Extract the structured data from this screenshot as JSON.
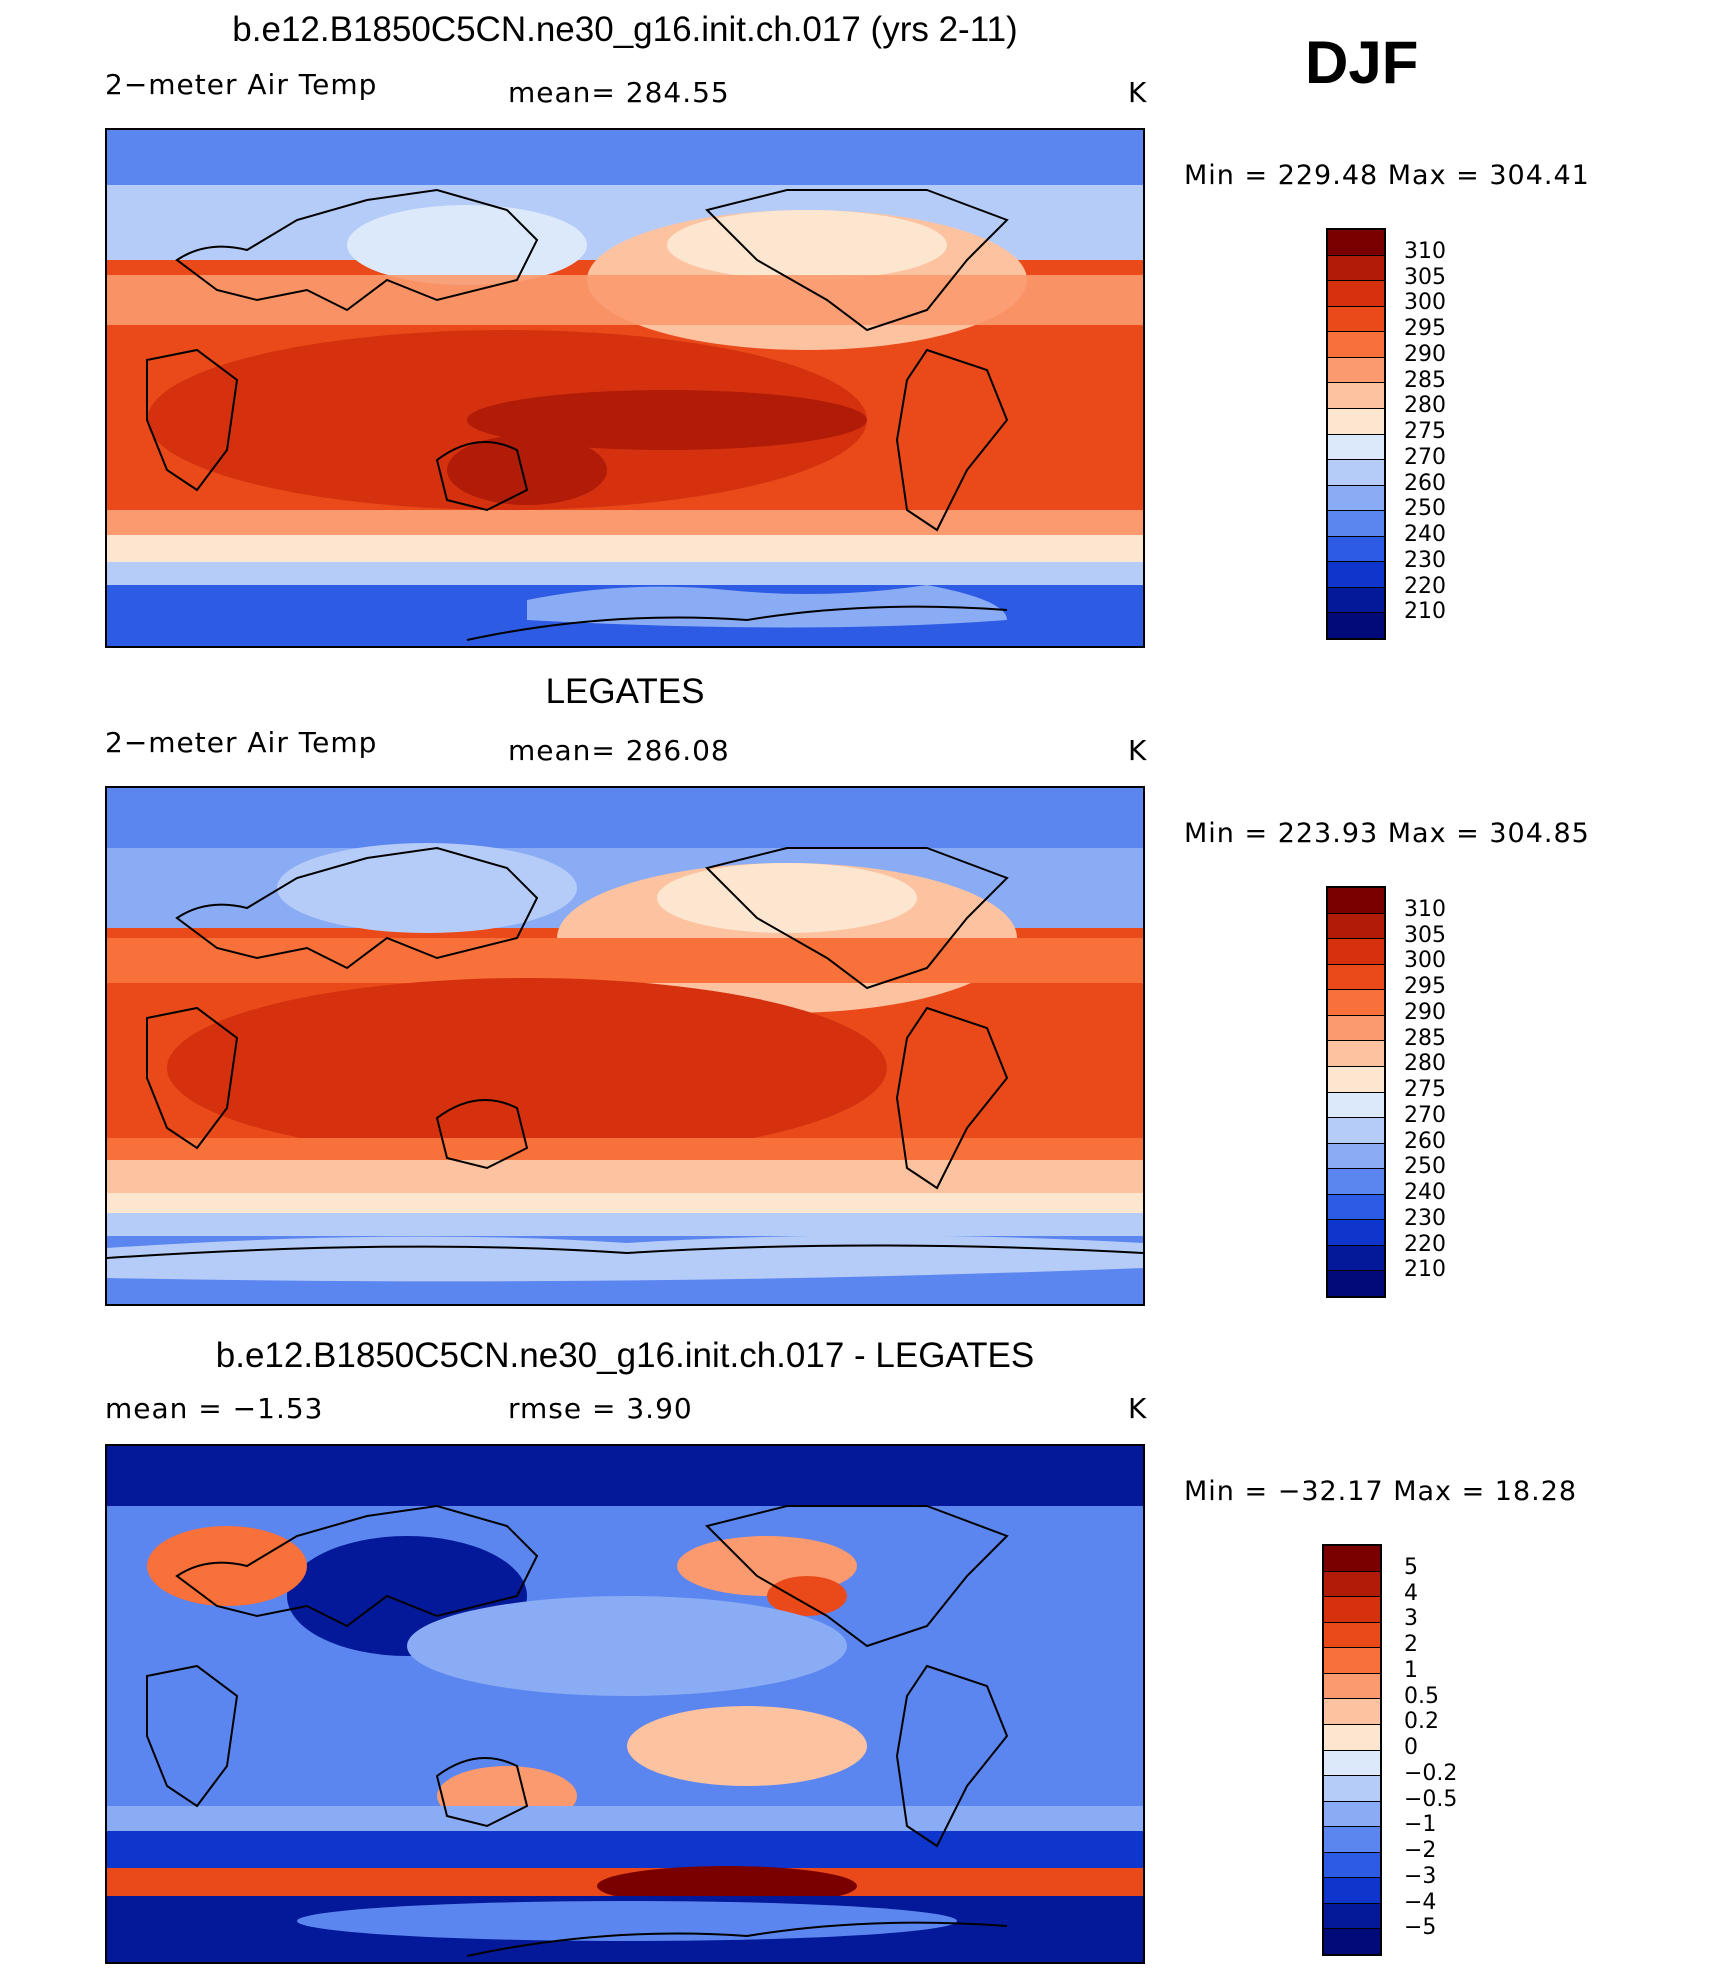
{
  "season": "DJF",
  "panels": [
    {
      "title": "b.e12.B1850C5CN.ne30_g16.init.ch.017 (yrs 2-11)",
      "left_label": "2−meter Air Temp",
      "center_label": "mean=  284.55",
      "units": "K",
      "minmax": "Min  =  229.48  Max  =  304.41",
      "colorbar_labels": [
        "310",
        "305",
        "300",
        "295",
        "290",
        "285",
        "280",
        "275",
        "270",
        "260",
        "250",
        "240",
        "230",
        "220",
        "210"
      ]
    },
    {
      "title": "LEGATES",
      "left_label": "2−meter Air Temp",
      "center_label": "mean=  286.08",
      "units": "K",
      "minmax": "Min  =  223.93  Max  =  304.85",
      "colorbar_labels": [
        "310",
        "305",
        "300",
        "295",
        "290",
        "285",
        "280",
        "275",
        "270",
        "260",
        "250",
        "240",
        "230",
        "220",
        "210"
      ]
    },
    {
      "title": "b.e12.B1850C5CN.ne30_g16.init.ch.017 - LEGATES",
      "left_label": "mean =    −1.53",
      "center_label": "rmse =     3.90",
      "units": "K",
      "minmax": "Min  =  −32.17  Max  =    18.28",
      "colorbar_labels": [
        "5",
        "4",
        "3",
        "2",
        "1",
        "0.5",
        "0.2",
        "0",
        "−0.2",
        "−0.5",
        "−1",
        "−2",
        "−3",
        "−4",
        "−5"
      ]
    }
  ],
  "colors": {
    "ramp": [
      "#7a0000",
      "#b01c08",
      "#d6310e",
      "#ea4a1a",
      "#f8703a",
      "#fb9a6e",
      "#fdc2a0",
      "#fde6cf",
      "#dbe9fb",
      "#b6ccf8",
      "#8aacf5",
      "#5c86ef",
      "#2e5be4",
      "#0f36cc",
      "#03199a",
      "#000a78"
    ],
    "coast": "#000000"
  }
}
